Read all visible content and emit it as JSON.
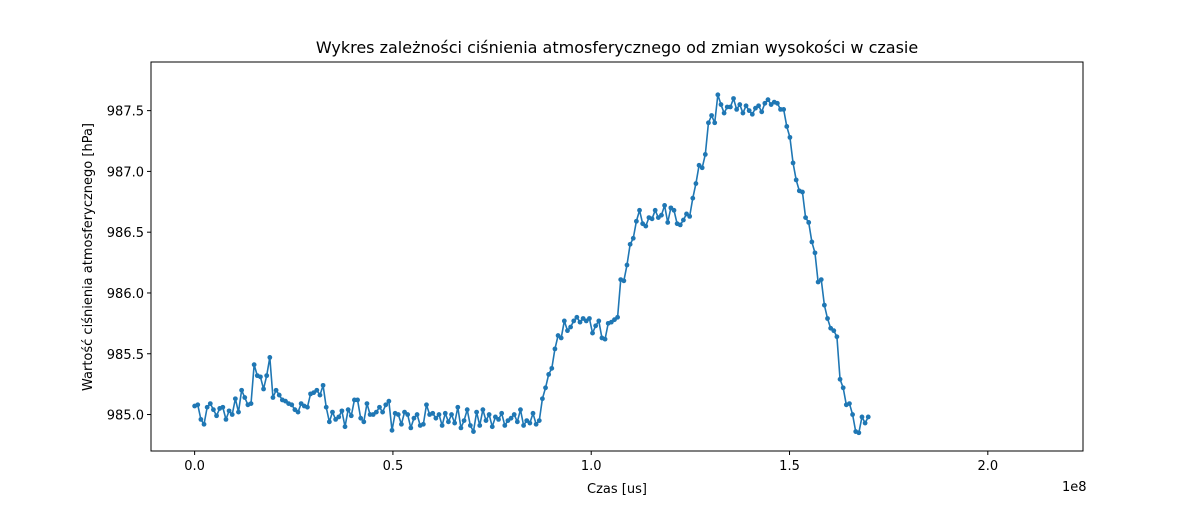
{
  "chart_data": {
    "type": "line",
    "title": "Wykres zależności ciśnienia atmosferycznego od zmian wysokości w czasie",
    "xlabel": "Czas [us]",
    "ylabel": "Wartość ciśnienia atmosferycznego [hPa]",
    "x_offset_label": "1e8",
    "x_ticks": [
      0.0,
      0.5,
      1.0,
      1.5,
      2.0
    ],
    "x_tick_labels": [
      "0.0",
      "0.5",
      "1.0",
      "1.5",
      "2.0"
    ],
    "y_ticks": [
      985.0,
      985.5,
      986.0,
      986.5,
      987.0,
      987.5
    ],
    "y_tick_labels": [
      "985.0",
      "985.5",
      "986.0",
      "986.5",
      "987.0",
      "987.5"
    ],
    "xlim": [
      -0.11,
      2.24
    ],
    "ylim": [
      984.7,
      987.9
    ],
    "grid": false,
    "color": "#1f77b4",
    "marker": "circle",
    "series": [
      {
        "x_start": 0.0,
        "x_step": 0.0079,
        "values": [
          985.07,
          985.08,
          984.96,
          984.92,
          985.06,
          985.09,
          985.04,
          984.99,
          985.05,
          985.06,
          984.96,
          985.03,
          985.0,
          985.13,
          985.02,
          985.2,
          985.14,
          985.08,
          985.09,
          985.41,
          985.32,
          985.31,
          985.21,
          985.32,
          985.47,
          985.14,
          985.2,
          985.16,
          985.12,
          985.11,
          985.09,
          985.08,
          985.04,
          985.02,
          985.09,
          985.07,
          985.06,
          985.17,
          985.18,
          985.2,
          985.16,
          985.24,
          985.06,
          984.94,
          985.02,
          984.96,
          984.98,
          985.03,
          984.9,
          985.04,
          984.99,
          985.12,
          985.12,
          984.97,
          984.94,
          985.09,
          985.0,
          985.0,
          985.02,
          985.06,
          985.02,
          985.08,
          985.11,
          984.87,
          985.01,
          985.0,
          984.92,
          985.02,
          985.0,
          984.89,
          984.97,
          985.0,
          984.91,
          984.92,
          985.08,
          985.0,
          985.01,
          984.97,
          985.0,
          984.91,
          985.01,
          984.94,
          985.0,
          984.93,
          985.06,
          984.89,
          984.95,
          985.04,
          984.91,
          984.86,
          985.02,
          984.91,
          985.04,
          984.95,
          985.0,
          984.9,
          984.98,
          984.96,
          985.01,
          984.91,
          984.95,
          984.97,
          985.0,
          984.94,
          985.04,
          984.91,
          984.95,
          984.93,
          985.01,
          984.92,
          984.95,
          985.13,
          985.22,
          985.33,
          985.38,
          985.54,
          985.65,
          985.63,
          985.77,
          985.69,
          985.72,
          985.77,
          985.8,
          985.76,
          985.79,
          985.77,
          985.79,
          985.67,
          985.73,
          985.77,
          985.63,
          985.62,
          985.75,
          985.76,
          985.78,
          985.8,
          986.11,
          986.1,
          986.23,
          986.4,
          986.45,
          986.59,
          986.68,
          986.57,
          986.55,
          986.62,
          986.61,
          986.68,
          986.62,
          986.64,
          986.72,
          986.58,
          986.7,
          986.68,
          986.57,
          986.56,
          986.6,
          986.65,
          986.63,
          986.78,
          986.9,
          987.05,
          987.03,
          987.14,
          987.4,
          987.46,
          987.4,
          987.63,
          987.55,
          987.48,
          987.53,
          987.53,
          987.6,
          987.51,
          987.55,
          987.48,
          987.54,
          987.5,
          987.47,
          987.52,
          987.54,
          987.49,
          987.56,
          987.59,
          987.55,
          987.57,
          987.56,
          987.51,
          987.51,
          987.37,
          987.28,
          987.07,
          986.93,
          986.84,
          986.83,
          986.62,
          986.58,
          986.42,
          986.33,
          986.09,
          986.11,
          985.9,
          985.79,
          985.71,
          985.69,
          985.64,
          985.29,
          985.22,
          985.08,
          985.09,
          985.0,
          984.86,
          984.85,
          984.98,
          984.93,
          984.98
        ]
      }
    ]
  }
}
